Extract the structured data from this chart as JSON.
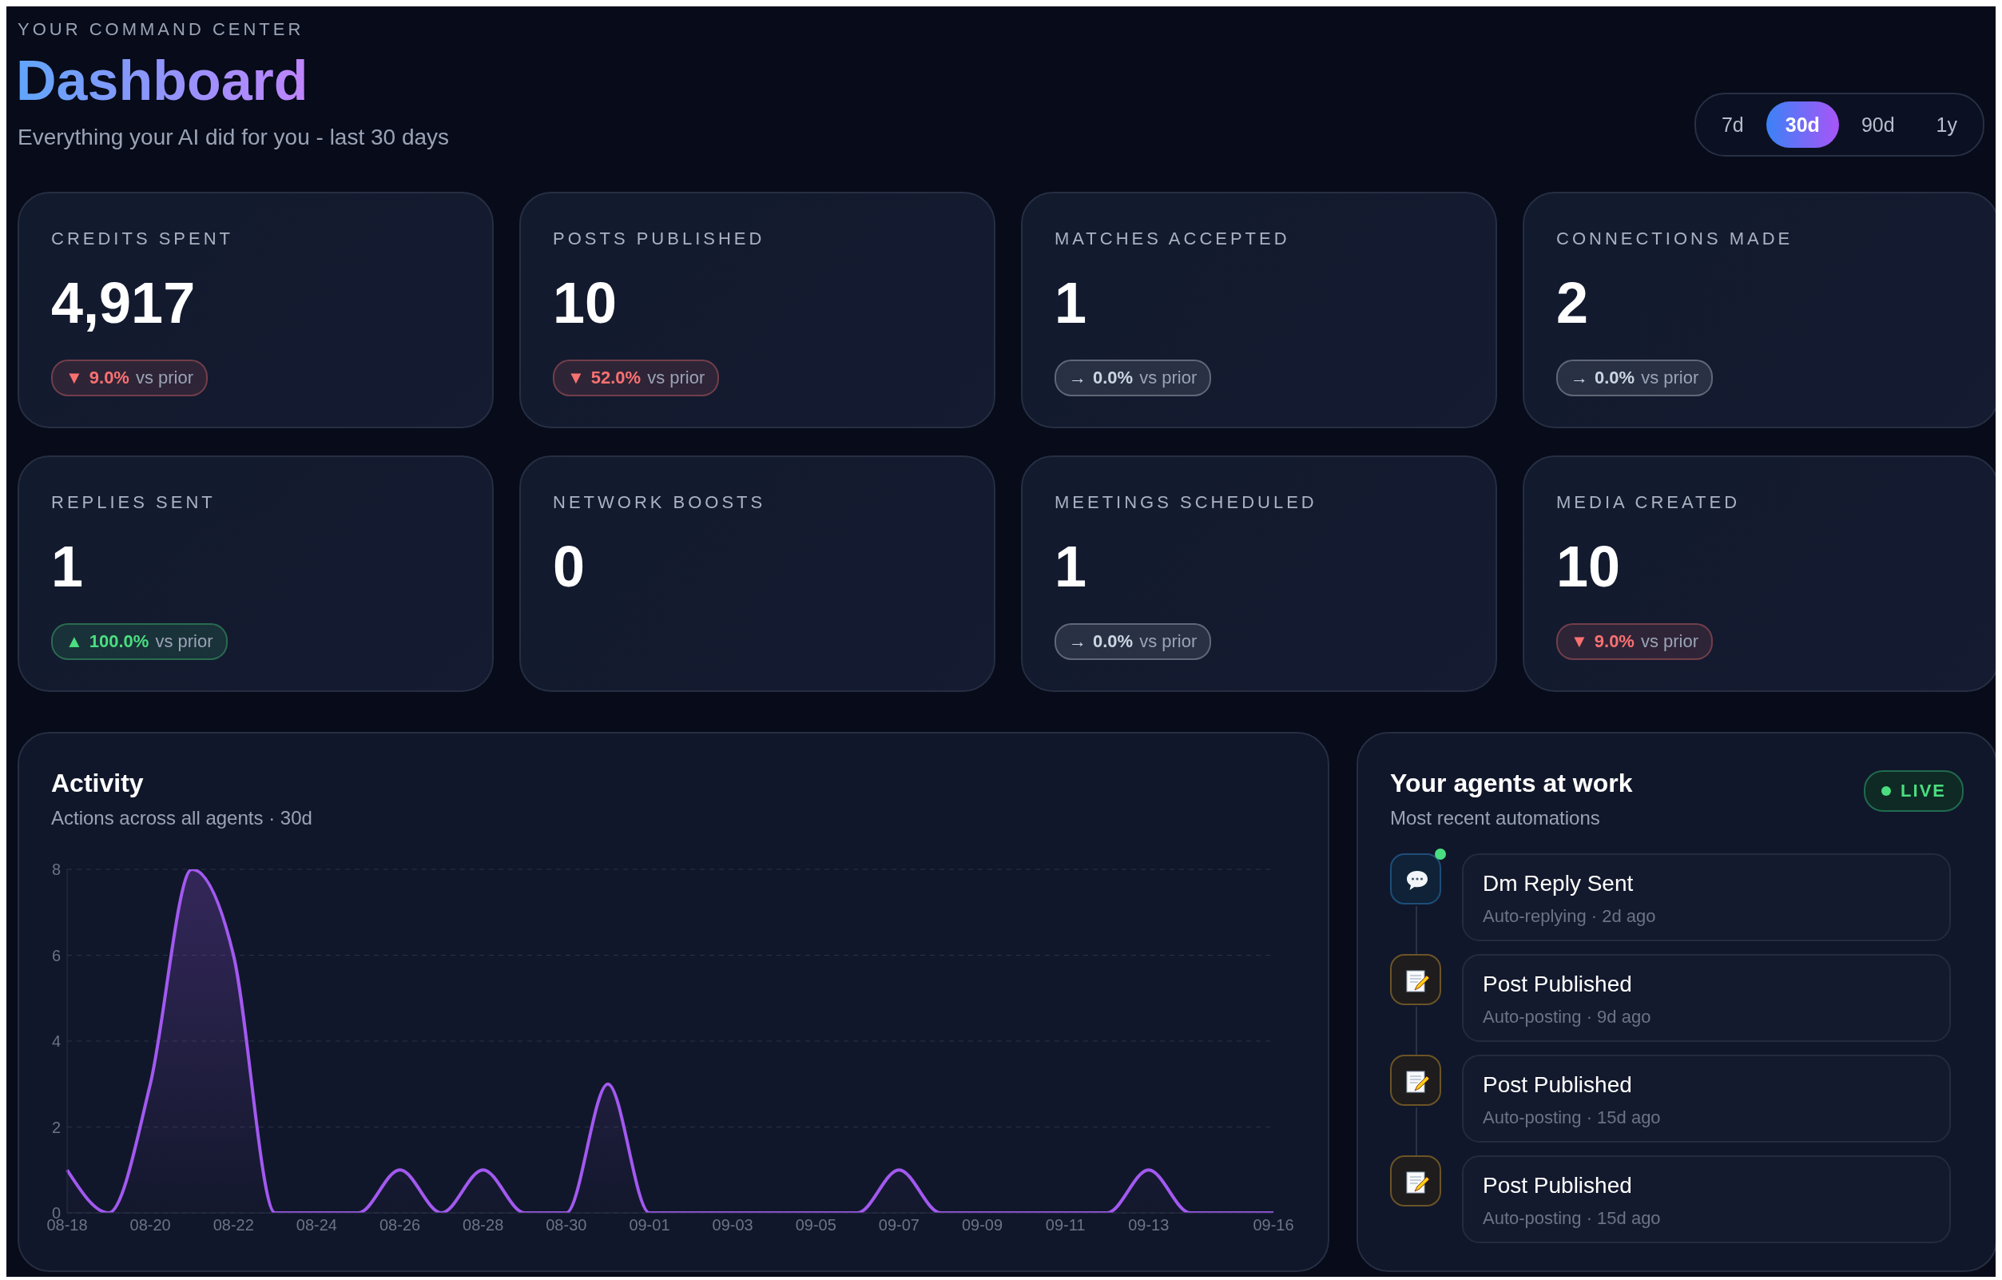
{
  "chart_data": [
    {
      "type": "other",
      "title": "Dashboard",
      "subtitle": "Everything your AI did for you - last 30 days",
      "annotations": [
        "YOUR COMMAND CENTER",
        "7d",
        "30d",
        "90d",
        "1y"
      ]
    },
    {
      "type": "other",
      "title": "CREDITS SPENT",
      "annotations": [
        "4,917",
        "▼",
        "9.0%",
        "vs prior"
      ],
      "color": "#f87171"
    },
    {
      "type": "other",
      "title": "POSTS PUBLISHED",
      "annotations": [
        "10",
        "▼",
        "52.0%",
        "vs prior"
      ],
      "color": "#f87171"
    },
    {
      "type": "other",
      "title": "MATCHES ACCEPTED",
      "annotations": [
        "1",
        "→",
        "0.0%",
        "vs prior"
      ],
      "color": "#cbd5e1"
    },
    {
      "type": "other",
      "title": "CONNECTIONS MADE",
      "annotations": [
        "2",
        "→",
        "0.0%",
        "vs prior"
      ],
      "color": "#cbd5e1"
    },
    {
      "type": "other",
      "title": "REPLIES SENT",
      "annotations": [
        "1",
        "▲",
        "100.0%",
        "vs prior"
      ],
      "color": "#4ade80"
    },
    {
      "type": "other",
      "title": "NETWORK BOOSTS",
      "annotations": [
        "0"
      ]
    },
    {
      "type": "other",
      "title": "MEETINGS SCHEDULED",
      "annotations": [
        "1",
        "→",
        "0.0%",
        "vs prior"
      ],
      "color": "#cbd5e1"
    },
    {
      "type": "other",
      "title": "MEDIA CREATED",
      "annotations": [
        "10",
        "▼",
        "9.0%",
        "vs prior"
      ],
      "color": "#f87171"
    },
    {
      "type": "area",
      "title": "Activity",
      "subtitle": "Actions across all agents · 30d",
      "categories": [
        "08-18",
        null,
        "08-20",
        null,
        "08-22",
        null,
        "08-24",
        null,
        "08-26",
        null,
        "08-28",
        null,
        "08-30",
        null,
        "09-01",
        null,
        "09-03",
        null,
        "09-05",
        null,
        "09-07",
        null,
        "09-09",
        null,
        "09-11",
        null,
        "09-13",
        null,
        null,
        "09-16"
      ],
      "series": [
        {
          "color": "#a259f0",
          "values": [
            1,
            0,
            3,
            8,
            6,
            0,
            0,
            0,
            1,
            0,
            1,
            0,
            0,
            3,
            0,
            0,
            0,
            0,
            0,
            0,
            1,
            0,
            0,
            0,
            0,
            0,
            1,
            0,
            0,
            0
          ]
        }
      ],
      "ylim": [
        0,
        8
      ],
      "yticks": [
        0,
        2,
        4,
        6,
        8
      ],
      "grid": "y",
      "line_style": "solid"
    },
    {
      "type": "other",
      "title": "Your agents at work",
      "subtitle": "Most recent automations",
      "annotations": [
        "LIVE",
        "Dm Reply Sent",
        "Auto-replying · 2d ago",
        "Post Published",
        "Auto-posting · 9d ago",
        "Post Published",
        "Auto-posting · 15d ago",
        "Post Published",
        "Auto-posting · 15d ago"
      ]
    }
  ]
}
